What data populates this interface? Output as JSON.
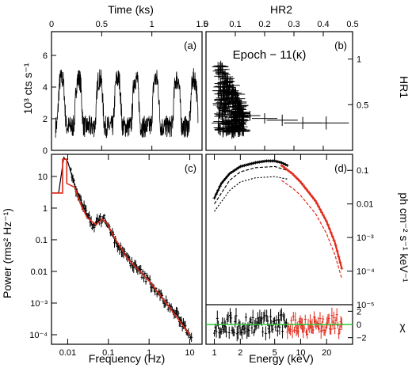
{
  "chart_data": [
    {
      "panel": "(a)",
      "type": "line",
      "xlabel_top": "Time (ks)",
      "ylabel": "10³ cts s⁻¹",
      "xlim": [
        0,
        1.5
      ],
      "ylim": [
        0,
        7.5
      ],
      "xticks": [
        "0",
        "0.5",
        "1",
        "1.5"
      ],
      "yticks": [
        "0",
        "2",
        "4",
        "6"
      ],
      "flare_peaks_ks": [
        0.1,
        0.27,
        0.48,
        0.66,
        0.84,
        1.04,
        1.25,
        1.42
      ],
      "quiescent_level": 1.5,
      "peak_level": 4.5
    },
    {
      "panel": "(b)",
      "type": "scatter",
      "annotation": "Epoch − 11(κ)",
      "xlabel_top": "HR2",
      "ylabel": "HR1",
      "xlim": [
        0,
        0.5
      ],
      "ylim": [
        0,
        1.3
      ],
      "xticks": [
        "0",
        "0.1",
        "0.2",
        "0.3",
        "0.4",
        "0.5"
      ],
      "yticks": [
        "0.5",
        "1"
      ],
      "cluster": {
        "x_range": [
          0.04,
          0.13
        ],
        "y_range": [
          0.2,
          0.95
        ]
      },
      "tail": [
        [
          0.15,
          0.38
        ],
        [
          0.2,
          0.35
        ],
        [
          0.26,
          0.33
        ],
        [
          0.33,
          0.3
        ],
        [
          0.41,
          0.3
        ]
      ]
    },
    {
      "panel": "(c)",
      "type": "line",
      "xlabel": "Frequency (Hz)",
      "ylabel": "Power (rms² Hz⁻¹)",
      "xscale": "log",
      "yscale": "log",
      "xlim": [
        0.004,
        20
      ],
      "ylim": [
        5e-05,
        50
      ],
      "xticks": [
        "0.01",
        "0.1",
        "1",
        "10"
      ],
      "yticks": [
        "10",
        "1",
        "0.1",
        "0.01",
        "10⁻³",
        "10⁻⁴"
      ],
      "series": [
        {
          "color": "#000000",
          "x": [
            0.004,
            0.006,
            0.008,
            0.01,
            0.015,
            0.02,
            0.03,
            0.04,
            0.06,
            0.08,
            0.1,
            0.15,
            0.2,
            0.3,
            0.5,
            1,
            2,
            3,
            5,
            10
          ],
          "y": [
            3,
            3,
            40,
            30,
            5,
            2,
            0.6,
            0.3,
            0.4,
            0.5,
            0.25,
            0.09,
            0.05,
            0.025,
            0.012,
            0.005,
            0.0015,
            0.0008,
            0.0004,
            0.0001
          ]
        },
        {
          "color": "#e02a1a",
          "x": [
            0.004,
            0.0075,
            0.0075,
            0.0095,
            0.0095,
            0.015,
            0.02,
            0.03,
            0.05,
            0.07,
            0.09,
            0.15,
            0.3,
            1,
            3,
            10
          ],
          "y": [
            3,
            3,
            35,
            35,
            6,
            4.5,
            1.5,
            0.5,
            0.3,
            0.45,
            0.35,
            0.1,
            0.025,
            0.005,
            0.0008,
            0.0001
          ]
        }
      ]
    },
    {
      "panel": "(d)",
      "type": "line",
      "xlabel": "Energy (keV)",
      "ylabel": "ph cm⁻² s⁻¹ keV⁻¹",
      "xscale": "log",
      "yscale": "log",
      "xlim": [
        0.8,
        40
      ],
      "ylim": [
        1e-05,
        0.3
      ],
      "xticks": [
        "1",
        "2",
        "5",
        "10",
        "20"
      ],
      "yticks": [
        "0.1",
        "0.01",
        "10⁻³",
        "10⁻⁴",
        "10⁻⁵"
      ],
      "series": [
        {
          "color": "#000000",
          "x": [
            1,
            1.2,
            1.5,
            2,
            3,
            4,
            5,
            6,
            7
          ],
          "y": [
            0.015,
            0.04,
            0.08,
            0.13,
            0.17,
            0.19,
            0.19,
            0.17,
            0.14
          ]
        },
        {
          "color": "#000000",
          "x": [
            1,
            1.5,
            2,
            3,
            5,
            7
          ],
          "y": [
            0.01,
            0.05,
            0.09,
            0.12,
            0.13,
            0.1
          ]
        },
        {
          "color": "#000000",
          "x": [
            1,
            1.5,
            2,
            3,
            5,
            7
          ],
          "y": [
            0.006,
            0.025,
            0.045,
            0.06,
            0.065,
            0.055
          ]
        },
        {
          "color": "#e02a1a",
          "x": [
            6,
            8,
            10,
            15,
            20,
            25,
            30
          ],
          "y": [
            0.14,
            0.08,
            0.045,
            0.012,
            0.003,
            0.0007,
            0.00012
          ]
        },
        {
          "color": "#e02a1a",
          "x": [
            6,
            8,
            10,
            15,
            20,
            25,
            30
          ],
          "y": [
            0.05,
            0.03,
            0.018,
            0.005,
            0.0013,
            0.0003,
            6e-05
          ]
        }
      ],
      "residuals": {
        "ylabel": "χ",
        "ylim": [
          -3,
          3
        ],
        "yticks": [
          "2",
          "0",
          "−2"
        ],
        "zero_line_color": "#2fc836"
      }
    }
  ]
}
